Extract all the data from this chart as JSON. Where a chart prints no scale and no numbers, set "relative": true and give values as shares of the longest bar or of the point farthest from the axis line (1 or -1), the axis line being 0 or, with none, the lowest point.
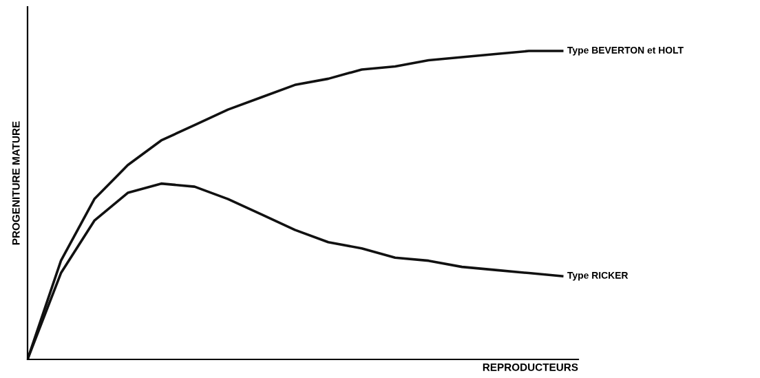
{
  "chart_data": {
    "type": "line",
    "relative": true,
    "xlabel": "REPRODUCTEURS",
    "ylabel": "PROGENITURE MATURE",
    "categories": [
      null,
      null,
      null,
      null,
      null,
      null,
      null,
      null,
      null,
      null,
      null,
      null,
      null,
      null,
      null,
      null,
      null
    ],
    "series": [
      {
        "name": "Type BEVERTON et HOLT",
        "color": "#111111",
        "values": [
          0,
          0.32,
          0.52,
          0.63,
          0.71,
          0.76,
          0.81,
          0.85,
          0.89,
          0.91,
          0.94,
          0.95,
          0.97,
          0.98,
          0.99,
          1,
          1
        ]
      },
      {
        "name": "Type RICKER",
        "color": "#111111",
        "values": [
          0,
          0.28,
          0.45,
          0.54,
          0.57,
          0.56,
          0.52,
          0.47,
          0.42,
          0.38,
          0.36,
          0.33,
          0.32,
          0.3,
          0.29,
          0.28,
          0.27
        ]
      }
    ],
    "legend": false,
    "tick_labels": false,
    "marker": "none",
    "line_style": "solid"
  }
}
